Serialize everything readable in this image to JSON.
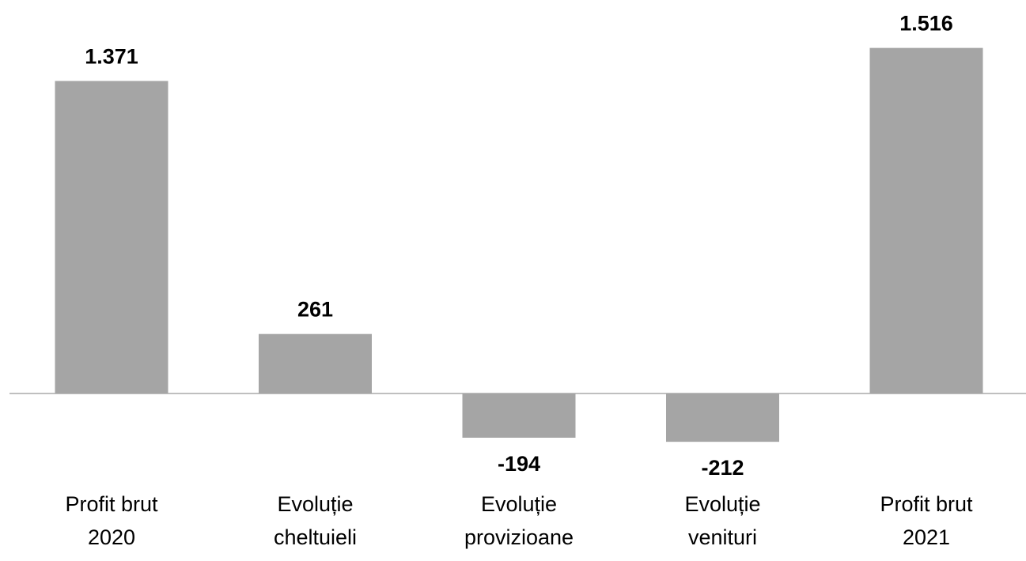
{
  "chart_data": {
    "type": "bar",
    "categories": [
      [
        "Profit brut",
        "2020"
      ],
      [
        "Evoluție",
        "cheltuieli"
      ],
      [
        "Evoluție",
        "provizioane"
      ],
      [
        "Evoluție",
        "venituri"
      ],
      [
        "Profit brut",
        "2021"
      ]
    ],
    "values": [
      1371,
      261,
      -194,
      -212,
      1516
    ],
    "value_labels": [
      "1.371",
      "261",
      "-194",
      "-212",
      "1.516"
    ],
    "title": "",
    "xlabel": "",
    "ylabel": "",
    "ylim": [
      -212,
      1516
    ],
    "grid": false,
    "legend": "none",
    "colors": {
      "bar": "#a5a5a5",
      "axis": "#bfbfbf",
      "text": "#000000"
    }
  }
}
